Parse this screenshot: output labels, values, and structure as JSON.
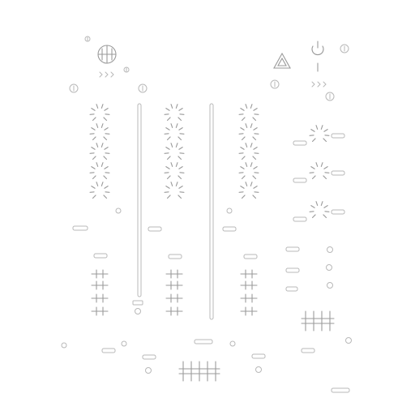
{
  "page": {
    "background": "#ffffff",
    "stroke": "#b8b8b8"
  },
  "components": {
    "logo": "crosshair-logo-icon",
    "warning": "hazard-triangle-icon",
    "power": "power-icon",
    "channels": 3,
    "channel_names": [
      "channel-left",
      "channel-center",
      "channel-right"
    ],
    "knobs_per_channel": 5,
    "faders_per_channel": 4,
    "fx_knobs": 3,
    "indicator_leds": 3,
    "crossfader_faders": 5,
    "fx_faders": 4
  }
}
